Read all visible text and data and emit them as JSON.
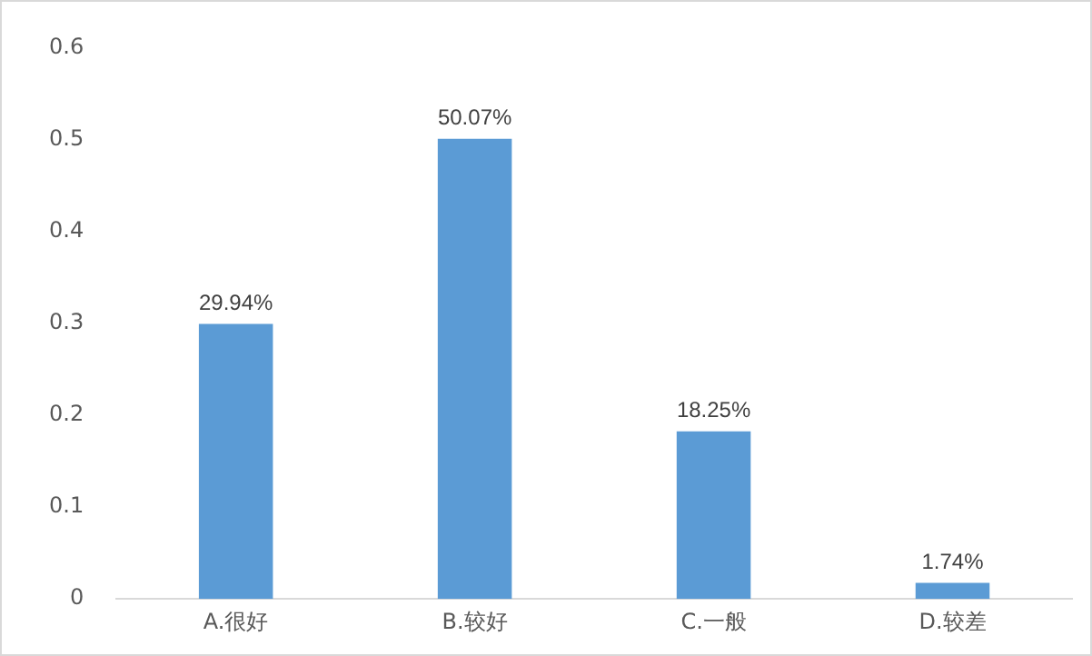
{
  "chart_data": {
    "type": "bar",
    "categories": [
      "A.很好",
      "B.较好",
      "C.一般",
      "D.较差"
    ],
    "series": [
      {
        "color": "#5b9bd5",
        "values": [
          0.2994,
          0.5007,
          0.1825,
          0.0174
        ],
        "value_labels": [
          "29.94%",
          "50.07%",
          "18.25%",
          "1.74%"
        ]
      }
    ],
    "ylim": [
      0,
      0.6
    ],
    "yticks": [
      0,
      0.1,
      0.2,
      0.3,
      0.4,
      0.5,
      0.6
    ],
    "grid": false,
    "legend": false
  }
}
